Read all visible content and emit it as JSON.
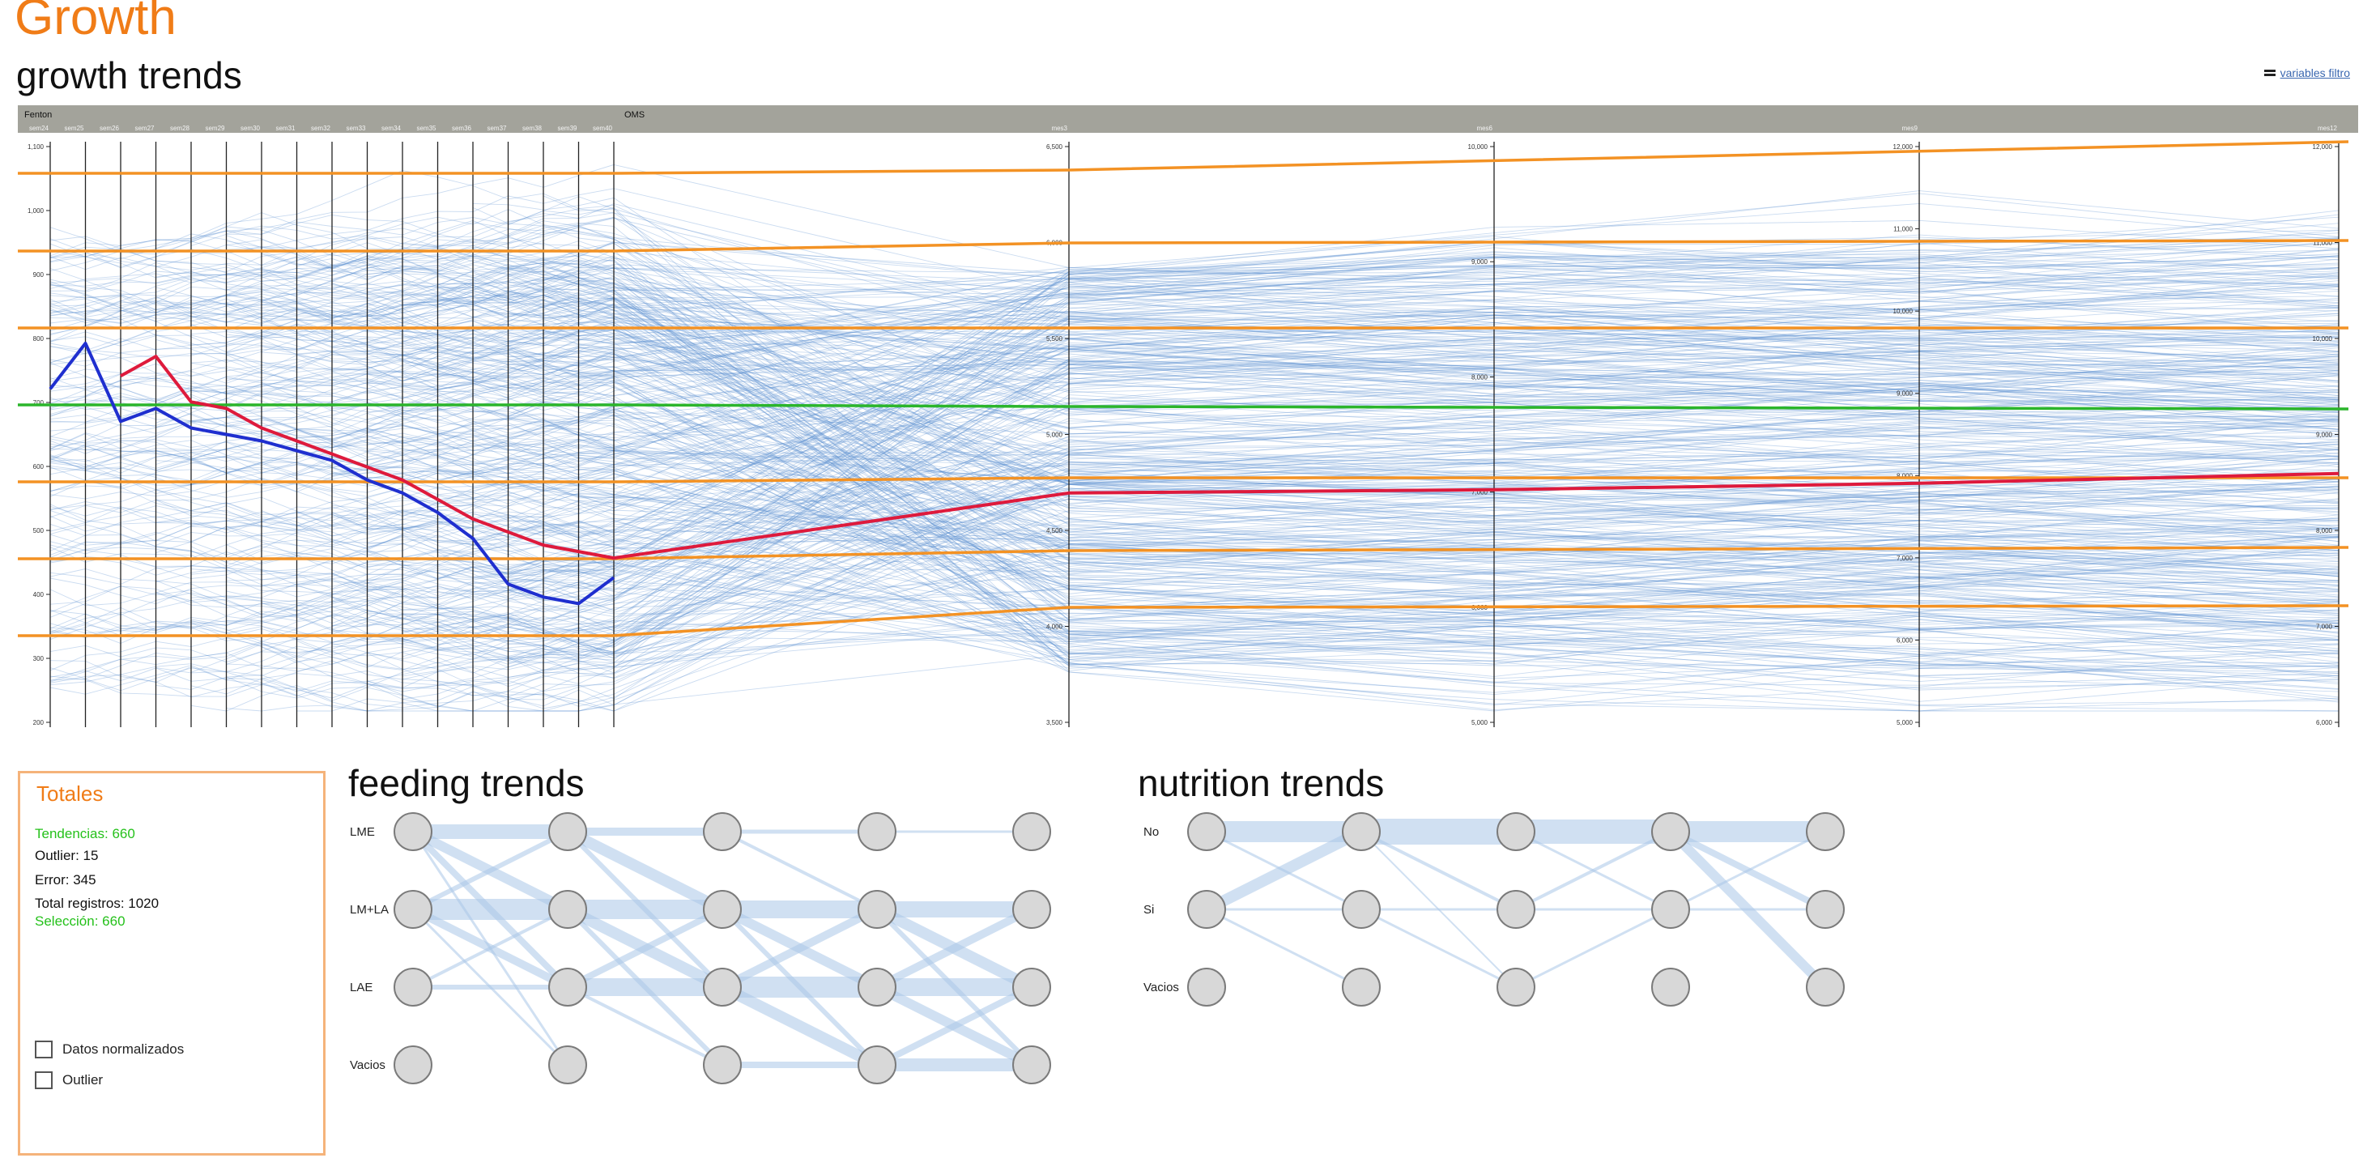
{
  "page": {
    "title": "Growth"
  },
  "growth": {
    "title": "growth trends",
    "link_label": "variables filtro",
    "panel_fenton_label": "Fenton",
    "panel_oms_label": "OMS",
    "colors": {
      "percentile": "#f39224",
      "median": "#2bb52b",
      "selected": "#de1a3c",
      "second": "#1f2fcf",
      "trend": "#5b8fd1",
      "header": "#a3a39b"
    }
  },
  "chart_data": [
    {
      "type": "line",
      "title": "growth trends",
      "note": "parallel coordinates of weight per patient; Fenton weekly axes then OMS monthly axes",
      "axes": [
        "sem24",
        "sem25",
        "sem26",
        "sem27",
        "sem28",
        "sem29",
        "sem30",
        "sem31",
        "sem32",
        "sem33",
        "sem34",
        "sem35",
        "sem36",
        "sem37",
        "sem38",
        "sem39",
        "sem40",
        "mes3",
        "mes6",
        "mes9",
        "mes12"
      ],
      "axis_ticks": {
        "sem24": [
          1100,
          1000,
          900,
          800,
          700,
          600,
          500,
          400,
          300,
          200
        ],
        "mes3": [
          6500,
          6000,
          5500,
          5000,
          4500,
          4000,
          3500
        ],
        "mes6": [
          10000,
          9000,
          8000,
          7000,
          6000,
          5000
        ],
        "mes9": [
          12000,
          11000,
          10000,
          9000,
          8000,
          7000,
          6000,
          5000
        ],
        "mes12": [
          12000,
          11000,
          10000,
          9000,
          8000,
          7000,
          6000
        ]
      },
      "series": [
        {
          "name": "",
          "values": [
            720,
            790,
            670,
            690,
            660,
            650,
            640,
            625,
            610,
            580,
            560,
            530,
            490,
            420,
            400,
            390,
            430,
            null,
            null,
            null,
            null
          ]
        },
        {
          "name": "",
          "values": [
            null,
            null,
            740,
            770,
            700,
            690,
            660,
            640,
            620,
            600,
            580,
            550,
            520,
            500,
            480,
            470,
            460,
            560,
            565,
            575,
            590
          ]
        }
      ]
    },
    {
      "type": "line",
      "title": "feeding trends",
      "x": [
        "sem40",
        "mes3",
        "mes6",
        "mes9",
        "mes12"
      ],
      "categories": [
        "LME",
        "LM+LA",
        "LAE",
        "Vacios"
      ],
      "note": "flow diagram between category nodes at each time point"
    },
    {
      "type": "line",
      "title": "nutrition trends",
      "x": [
        "sem40",
        "mes3",
        "mes6",
        "mes9",
        "mes12"
      ],
      "categories": [
        "No",
        "Si",
        "Vacios"
      ],
      "note": "flow diagram between category nodes at each time point"
    }
  ],
  "feeding": {
    "title": "feeding trends",
    "rows": [
      "LME",
      "LM+LA",
      "LAE",
      "Vacios"
    ],
    "cols": [
      "sem40",
      "mes3",
      "mes6",
      "mes9",
      "mes12"
    ]
  },
  "nutrition": {
    "title": "nutrition trends",
    "rows": [
      "No",
      "Si",
      "Vacios"
    ],
    "cols": [
      "sem40",
      "mes3",
      "mes6",
      "mes9",
      "mes12"
    ]
  },
  "totals": {
    "title": "Totales",
    "tendencias": "Tendencias: 660",
    "outlier": "Outlier: 15",
    "error": "Error: 345",
    "total": "Total registros: 1020",
    "seleccion": "Selección: 660",
    "cb_normalizados": "Datos normalizados",
    "cb_outlier": "Outlier"
  }
}
